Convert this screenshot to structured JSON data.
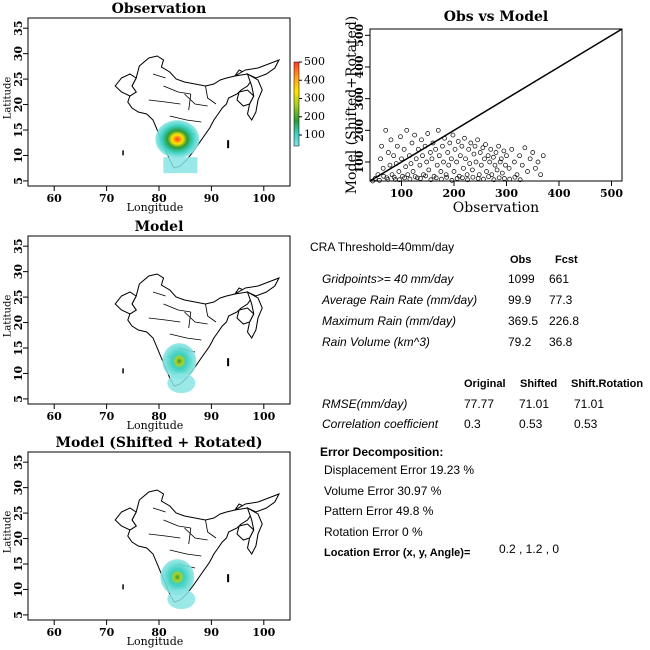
{
  "maps": [
    {
      "title": "Observation",
      "xlabel": "Longitude",
      "ylabel": "Latitude",
      "xticks": [
        "60",
        "70",
        "80",
        "90",
        "100"
      ],
      "yticks": [
        "35",
        "30",
        "25",
        "20",
        "15",
        "10",
        "5"
      ]
    },
    {
      "title": "Model",
      "xlabel": "Longitude",
      "ylabel": "Latitude",
      "xticks": [
        "60",
        "70",
        "80",
        "90",
        "100"
      ],
      "yticks": [
        "35",
        "30",
        "25",
        "20",
        "15",
        "10",
        "5"
      ]
    },
    {
      "title": "Model (Shifted + Rotated)",
      "xlabel": "Longitude",
      "ylabel": "Latitude",
      "xticks": [
        "60",
        "70",
        "80",
        "90",
        "100"
      ],
      "yticks": [
        "35",
        "30",
        "25",
        "20",
        "15",
        "10",
        "5"
      ]
    }
  ],
  "colorbar": {
    "ticks": [
      "500",
      "400",
      "300",
      "200",
      "100"
    ],
    "colors": [
      "#ff3a2a",
      "#ffa020",
      "#ffe600",
      "#b0d020",
      "#2e9a3a",
      "#3ad0c0",
      "#8ae4e4"
    ]
  },
  "chart_data": {
    "type": "scatter",
    "title": "Obs vs Model",
    "xlabel": "Observation",
    "ylabel": "Model (Shifted+Rotated)",
    "xticks": [
      100,
      200,
      300,
      400,
      500
    ],
    "yticks": [
      100,
      200,
      300,
      400,
      500
    ],
    "xlim": [
      40,
      520
    ],
    "ylim": [
      40,
      520
    ],
    "reference_line": "y = x",
    "points": [
      [
        55,
        60
      ],
      [
        60,
        110
      ],
      [
        62,
        150
      ],
      [
        65,
        80
      ],
      [
        70,
        200
      ],
      [
        72,
        50
      ],
      [
        75,
        130
      ],
      [
        78,
        90
      ],
      [
        80,
        170
      ],
      [
        82,
        60
      ],
      [
        85,
        120
      ],
      [
        88,
        45
      ],
      [
        90,
        95
      ],
      [
        92,
        150
      ],
      [
        95,
        70
      ],
      [
        98,
        180
      ],
      [
        100,
        110
      ],
      [
        102,
        55
      ],
      [
        105,
        140
      ],
      [
        108,
        85
      ],
      [
        110,
        200
      ],
      [
        112,
        60
      ],
      [
        115,
        120
      ],
      [
        118,
        95
      ],
      [
        120,
        160
      ],
      [
        122,
        70
      ],
      [
        125,
        185
      ],
      [
        128,
        110
      ],
      [
        130,
        50
      ],
      [
        132,
        140
      ],
      [
        135,
        90
      ],
      [
        138,
        170
      ],
      [
        140,
        120
      ],
      [
        142,
        60
      ],
      [
        145,
        150
      ],
      [
        148,
        100
      ],
      [
        150,
        190
      ],
      [
        152,
        75
      ],
      [
        155,
        130
      ],
      [
        158,
        110
      ],
      [
        160,
        160
      ],
      [
        162,
        55
      ],
      [
        165,
        140
      ],
      [
        168,
        90
      ],
      [
        170,
        200
      ],
      [
        172,
        120
      ],
      [
        175,
        70
      ],
      [
        178,
        150
      ],
      [
        180,
        100
      ],
      [
        182,
        175
      ],
      [
        185,
        60
      ],
      [
        188,
        130
      ],
      [
        190,
        90
      ],
      [
        192,
        160
      ],
      [
        195,
        110
      ],
      [
        198,
        185
      ],
      [
        200,
        70
      ],
      [
        202,
        140
      ],
      [
        205,
        100
      ],
      [
        208,
        165
      ],
      [
        210,
        55
      ],
      [
        212,
        120
      ],
      [
        215,
        150
      ],
      [
        218,
        80
      ],
      [
        220,
        175
      ],
      [
        222,
        110
      ],
      [
        225,
        60
      ],
      [
        228,
        140
      ],
      [
        230,
        95
      ],
      [
        232,
        160
      ],
      [
        235,
        75
      ],
      [
        238,
        125
      ],
      [
        240,
        150
      ],
      [
        242,
        100
      ],
      [
        245,
        170
      ],
      [
        248,
        60
      ],
      [
        250,
        130
      ],
      [
        252,
        90
      ],
      [
        255,
        145
      ],
      [
        258,
        110
      ],
      [
        260,
        155
      ],
      [
        262,
        70
      ],
      [
        265,
        120
      ],
      [
        268,
        100
      ],
      [
        270,
        140
      ],
      [
        272,
        60
      ],
      [
        275,
        115
      ],
      [
        278,
        90
      ],
      [
        280,
        130
      ],
      [
        282,
        75
      ],
      [
        285,
        150
      ],
      [
        288,
        100
      ],
      [
        290,
        110
      ],
      [
        292,
        65
      ],
      [
        295,
        135
      ],
      [
        298,
        90
      ],
      [
        300,
        120
      ],
      [
        305,
        80
      ],
      [
        310,
        140
      ],
      [
        315,
        100
      ],
      [
        320,
        60
      ],
      [
        325,
        120
      ],
      [
        330,
        90
      ],
      [
        335,
        145
      ],
      [
        340,
        70
      ],
      [
        345,
        110
      ],
      [
        350,
        130
      ],
      [
        355,
        80
      ],
      [
        360,
        100
      ],
      [
        365,
        60
      ],
      [
        370,
        120
      ],
      [
        45,
        40
      ],
      [
        50,
        48
      ],
      [
        58,
        42
      ],
      [
        66,
        55
      ],
      [
        74,
        45
      ],
      [
        86,
        52
      ],
      [
        96,
        44
      ],
      [
        106,
        50
      ],
      [
        116,
        46
      ],
      [
        126,
        54
      ],
      [
        136,
        48
      ],
      [
        146,
        56
      ],
      [
        156,
        44
      ],
      [
        166,
        50
      ],
      [
        176,
        46
      ],
      [
        186,
        52
      ],
      [
        196,
        42
      ],
      [
        206,
        48
      ],
      [
        216,
        50
      ],
      [
        226,
        44
      ],
      [
        236,
        52
      ],
      [
        246,
        48
      ],
      [
        256,
        46
      ],
      [
        266,
        54
      ],
      [
        276,
        44
      ],
      [
        286,
        50
      ],
      [
        296,
        48
      ],
      [
        306,
        46
      ],
      [
        316,
        52
      ],
      [
        326,
        44
      ]
    ]
  },
  "stats": {
    "threshold": "CRA Threshold=40mm/day",
    "col_obs": "Obs",
    "col_fcst": "Fcst",
    "rows": [
      {
        "label": "Gridpoints>= 40 mm/day",
        "obs": "1099",
        "fcst": "661"
      },
      {
        "label": "Average Rain Rate (mm/day)",
        "obs": "99.9",
        "fcst": "77.3"
      },
      {
        "label": "Maximum Rain (mm/day)",
        "obs": "369.5",
        "fcst": "226.8"
      },
      {
        "label": "Rain Volume (km^3)",
        "obs": "79.2",
        "fcst": "36.8"
      }
    ],
    "col_original": "Original",
    "col_shifted": "Shifted",
    "col_shiftrot": "Shift.Rotation",
    "rows2": [
      {
        "label": "RMSE(mm/day)",
        "orig": "77.77",
        "shift": "71.01",
        "rot": "71.01"
      },
      {
        "label": "Correlation coefficient",
        "orig": "0.3",
        "shift": "0.53",
        "rot": "0.53"
      }
    ],
    "decomp_title": "Error Decomposition:",
    "displacement": "Displacement Error   19.23 %",
    "volume": "Volume Error   30.97 %",
    "pattern": "Pattern Error   49.8 %",
    "rotation": "Rotation Error   0 %",
    "location_label": "Location Error (x, y, Angle)=",
    "location_value": "0.2 , 1.2 , 0"
  }
}
